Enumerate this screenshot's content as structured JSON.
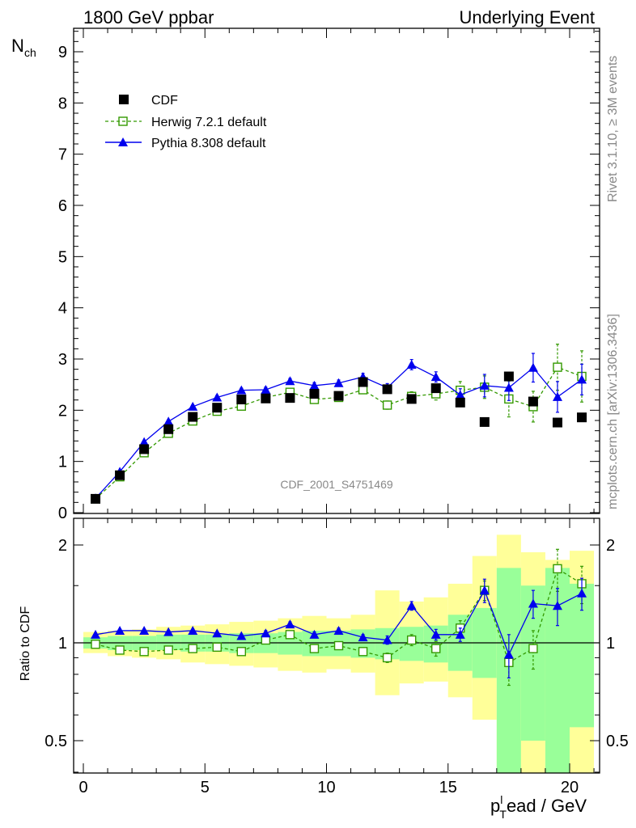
{
  "header": {
    "left": "1800 GeV ppbar",
    "right": "Underlying Event"
  },
  "sidebar": {
    "rivet": "Rivet 3.1.10, ≥ 3M events",
    "mcplots": "mcplots.cern.ch [arXiv:1306.3436]"
  },
  "colors": {
    "cdf": "#000000",
    "herwig": "#339900",
    "pythia": "#0000ee",
    "band_inner": "#99ff99",
    "band_outer": "#ffff99"
  },
  "chart_data": [
    {
      "type": "scatter",
      "panel": "main",
      "title": "",
      "label": "CDF_2001_S4751469",
      "ylabel_main": "N",
      "ylabel_sub": "ch",
      "ylim": [
        0,
        9.5
      ],
      "yticks": [
        "0",
        "1",
        "2",
        "3",
        "4",
        "5",
        "6",
        "7",
        "8",
        "9"
      ],
      "xlim": [
        -0.5,
        21.2
      ],
      "legend_position": "top-left",
      "x": [
        0.5,
        1.5,
        2.5,
        3.5,
        4.5,
        5.5,
        6.5,
        7.5,
        8.5,
        9.5,
        10.5,
        11.5,
        12.5,
        13.5,
        14.5,
        15.5,
        16.5,
        17.5,
        18.5,
        19.5,
        20.5
      ],
      "series": [
        {
          "name": "CDF",
          "marker": "square-filled",
          "values": [
            0.27,
            0.73,
            1.24,
            1.63,
            1.87,
            2.05,
            2.21,
            2.23,
            2.24,
            2.32,
            2.28,
            2.55,
            2.41,
            2.22,
            2.43,
            2.15,
            1.77,
            2.66,
            2.17,
            1.76,
            1.86
          ]
        },
        {
          "name": "Herwig 7.2.1 default",
          "marker": "square-open",
          "dashed": true,
          "values": [
            0.27,
            0.7,
            1.17,
            1.55,
            1.79,
            1.98,
            2.08,
            2.25,
            2.35,
            2.21,
            2.25,
            2.4,
            2.1,
            2.27,
            2.32,
            2.39,
            2.45,
            2.22,
            2.07,
            2.84,
            2.66
          ],
          "errors": [
            0.01,
            0.02,
            0.02,
            0.03,
            0.03,
            0.04,
            0.05,
            0.05,
            0.05,
            0.06,
            0.06,
            0.07,
            0.08,
            0.09,
            0.12,
            0.17,
            0.22,
            0.35,
            0.3,
            0.45,
            0.5
          ]
        },
        {
          "name": "Pythia 8.308 default",
          "marker": "triangle-filled",
          "values": [
            0.28,
            0.8,
            1.38,
            1.78,
            2.07,
            2.25,
            2.39,
            2.4,
            2.57,
            2.48,
            2.53,
            2.65,
            2.44,
            2.89,
            2.65,
            2.3,
            2.48,
            2.44,
            2.83,
            2.26,
            2.6
          ],
          "errors": [
            0.01,
            0.02,
            0.02,
            0.03,
            0.03,
            0.04,
            0.04,
            0.05,
            0.05,
            0.06,
            0.06,
            0.07,
            0.08,
            0.1,
            0.1,
            0.12,
            0.22,
            0.25,
            0.28,
            0.3,
            0.3
          ]
        }
      ]
    },
    {
      "type": "scatter",
      "panel": "ratio",
      "ylabel": "Ratio to CDF",
      "ylim": [
        0.35,
        2.25
      ],
      "yticks": [
        "0.5",
        "1",
        "2"
      ],
      "xlabel": "p",
      "xlabel_sub": "T",
      "xlabel_sup": "l",
      "xlabel_rest": "ead / GeV",
      "xticks": [
        "0",
        "5",
        "10",
        "15",
        "20"
      ],
      "bins": [
        [
          0,
          1
        ],
        [
          1,
          2
        ],
        [
          2,
          3
        ],
        [
          3,
          4
        ],
        [
          4,
          5
        ],
        [
          5,
          6
        ],
        [
          6,
          7
        ],
        [
          7,
          8
        ],
        [
          8,
          9
        ],
        [
          9,
          10
        ],
        [
          10,
          11
        ],
        [
          11,
          12
        ],
        [
          12,
          13
        ],
        [
          13,
          14
        ],
        [
          14,
          15
        ],
        [
          15,
          16
        ],
        [
          16,
          17
        ],
        [
          17,
          18
        ],
        [
          18,
          19
        ],
        [
          19,
          20
        ],
        [
          20,
          21
        ]
      ],
      "band_inner": [
        [
          0.96,
          1.04
        ],
        [
          0.95,
          1.05
        ],
        [
          0.95,
          1.05
        ],
        [
          0.95,
          1.06
        ],
        [
          0.94,
          1.06
        ],
        [
          0.94,
          1.06
        ],
        [
          0.93,
          1.07
        ],
        [
          0.93,
          1.07
        ],
        [
          0.92,
          1.08
        ],
        [
          0.91,
          1.09
        ],
        [
          0.91,
          1.09
        ],
        [
          0.9,
          1.1
        ],
        [
          0.89,
          1.11
        ],
        [
          0.88,
          1.12
        ],
        [
          0.87,
          1.13
        ],
        [
          0.82,
          1.22
        ],
        [
          0.78,
          1.28
        ],
        [
          0.3,
          1.7
        ],
        [
          0.5,
          1.5
        ],
        [
          0.3,
          1.7
        ],
        [
          0.55,
          1.52
        ]
      ],
      "band_outer": [
        [
          0.93,
          1.08
        ],
        [
          0.91,
          1.09
        ],
        [
          0.9,
          1.1
        ],
        [
          0.89,
          1.12
        ],
        [
          0.87,
          1.13
        ],
        [
          0.86,
          1.14
        ],
        [
          0.85,
          1.16
        ],
        [
          0.84,
          1.17
        ],
        [
          0.82,
          1.19
        ],
        [
          0.81,
          1.21
        ],
        [
          0.83,
          1.19
        ],
        [
          0.81,
          1.22
        ],
        [
          0.69,
          1.45
        ],
        [
          0.75,
          1.34
        ],
        [
          0.76,
          1.38
        ],
        [
          0.68,
          1.52
        ],
        [
          0.58,
          1.85
        ],
        [
          0.3,
          2.15
        ],
        [
          0.3,
          1.9
        ],
        [
          0.3,
          1.8
        ],
        [
          0.3,
          1.92
        ]
      ],
      "x": [
        0.5,
        1.5,
        2.5,
        3.5,
        4.5,
        5.5,
        6.5,
        7.5,
        8.5,
        9.5,
        10.5,
        11.5,
        12.5,
        13.5,
        14.5,
        15.5,
        16.5,
        17.5,
        18.5,
        19.5,
        20.5
      ],
      "series": [
        {
          "name": "Herwig 7.2.1 default",
          "marker": "square-open",
          "dashed": true,
          "values": [
            0.99,
            0.95,
            0.94,
            0.95,
            0.96,
            0.97,
            0.94,
            1.02,
            1.06,
            0.96,
            0.98,
            0.94,
            0.9,
            1.02,
            0.96,
            1.11,
            1.45,
            0.87,
            0.96,
            1.69,
            1.52
          ],
          "errors": [
            0.01,
            0.01,
            0.01,
            0.01,
            0.01,
            0.01,
            0.01,
            0.02,
            0.02,
            0.02,
            0.02,
            0.02,
            0.03,
            0.04,
            0.05,
            0.06,
            0.1,
            0.13,
            0.13,
            0.25,
            0.2
          ]
        },
        {
          "name": "Pythia 8.308 default",
          "marker": "triangle-filled",
          "values": [
            1.06,
            1.09,
            1.09,
            1.08,
            1.09,
            1.07,
            1.05,
            1.07,
            1.14,
            1.06,
            1.09,
            1.04,
            1.02,
            1.3,
            1.06,
            1.06,
            1.45,
            0.92,
            1.32,
            1.3,
            1.42
          ],
          "errors": [
            0.01,
            0.01,
            0.01,
            0.01,
            0.01,
            0.01,
            0.01,
            0.02,
            0.02,
            0.02,
            0.02,
            0.02,
            0.03,
            0.04,
            0.04,
            0.05,
            0.12,
            0.14,
            0.13,
            0.17,
            0.16
          ]
        }
      ]
    }
  ]
}
